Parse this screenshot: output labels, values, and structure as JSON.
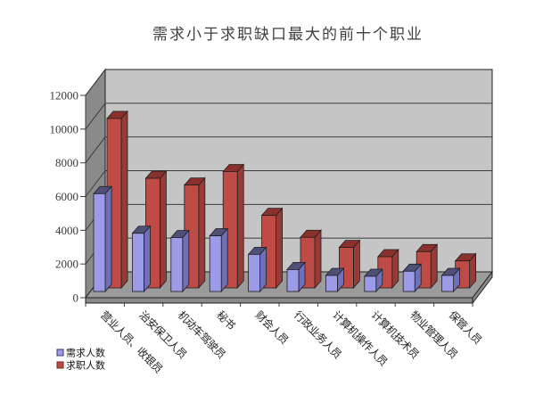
{
  "window": {
    "background": "#FFFFFF"
  },
  "legend": [
    {
      "label": "需求人数",
      "color": "#9B9BE8",
      "border": "#383864"
    },
    {
      "label": "求职人数",
      "color": "#B84A44",
      "border": "#6E2523"
    }
  ],
  "chart_data": {
    "type": "bar",
    "effect": "3d-clustered-column",
    "title": "需求小于求职缺口最大的前十个职业",
    "categories": [
      "营业人员、收银员",
      "治安保卫人员",
      "机动车驾驶员",
      "秘书",
      "财会人员",
      "行政业务人员",
      "计算机操作人员",
      "计算机技术员",
      "物业管理人员",
      "保管人员"
    ],
    "series": [
      {
        "name": "需求人数",
        "color": "#9B9BE8",
        "color_top": "#4F4F78",
        "color_side": "#7070B8",
        "values": [
          5800,
          3450,
          3200,
          3300,
          2200,
          1300,
          950,
          900,
          1200,
          950
        ]
      },
      {
        "name": "求职人数",
        "color": "#BE4B45",
        "color_top": "#8A312E",
        "color_side": "#963C38",
        "values": [
          10050,
          6500,
          6100,
          6900,
          4300,
          3000,
          2400,
          1850,
          2150,
          1600
        ]
      }
    ],
    "xlabel": "",
    "ylabel": "",
    "ylim": [
      0,
      12000
    ],
    "ytick_interval": 2000,
    "yticks": [
      "0",
      "2000",
      "4000",
      "6000",
      "8000",
      "10000",
      "12000"
    ],
    "grid": true,
    "legend_position": "bottom-left",
    "wall_color": "#C5C5C5",
    "wall_side_color": "#8A8A8A",
    "floor_color": "#9B9B9B",
    "floor_front_color": "#8A8A8A",
    "outline_color": "#1f1f1f"
  }
}
